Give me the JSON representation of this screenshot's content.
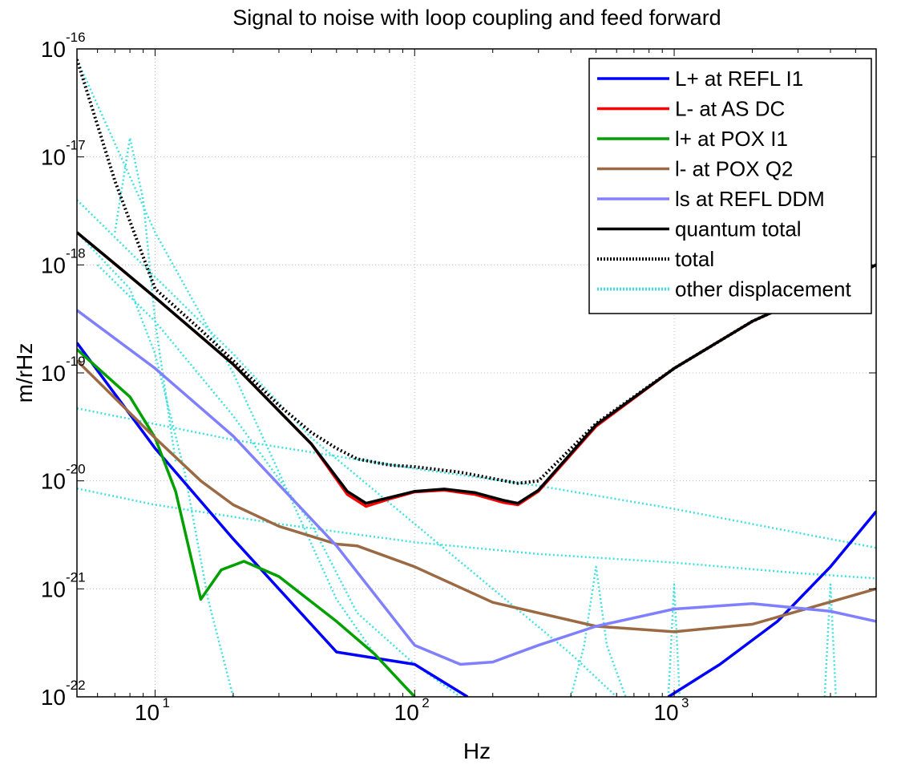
{
  "chart_data": {
    "type": "line",
    "title": "Signal to noise with loop coupling and feed forward",
    "xlabel": "Hz",
    "ylabel": "m/rHz",
    "xscale": "log",
    "yscale": "log",
    "xlim": [
      5,
      6000
    ],
    "ylim": [
      1e-22,
      1e-16
    ],
    "grid": true,
    "legend_position": "top-right",
    "x_ticks": [
      {
        "base": "10",
        "exp": "1",
        "value": 10
      },
      {
        "base": "10",
        "exp": "2",
        "value": 100
      },
      {
        "base": "10",
        "exp": "3",
        "value": 1000
      }
    ],
    "y_ticks": [
      {
        "base": "10",
        "exp": "-22",
        "value": 1e-22
      },
      {
        "base": "10",
        "exp": "-21",
        "value": 1e-21
      },
      {
        "base": "10",
        "exp": "-20",
        "value": 1e-20
      },
      {
        "base": "10",
        "exp": "-19",
        "value": 1e-19
      },
      {
        "base": "10",
        "exp": "-18",
        "value": 1e-18
      },
      {
        "base": "10",
        "exp": "-17",
        "value": 1e-17
      },
      {
        "base": "10",
        "exp": "-16",
        "value": 1e-16
      }
    ],
    "series": [
      {
        "name": "L+ at REFL I1",
        "color": "#0000ff",
        "style": "solid",
        "x": [
          5,
          10,
          20,
          50,
          100,
          160
        ],
        "y": [
          1.9e-19,
          2e-20,
          2.9e-21,
          2.6e-22,
          2e-22,
          1e-22
        ]
      },
      {
        "name": "L+ at REFL I1 (high frequency)",
        "color": "#0000ff",
        "style": "solid",
        "x": [
          950,
          1500,
          2500,
          4000,
          6000
        ],
        "y": [
          1e-22,
          2e-22,
          5e-22,
          1.6e-21,
          5.2e-21
        ]
      },
      {
        "name": "L- at AS DC",
        "color": "#ff0000",
        "style": "solid",
        "x": [
          5,
          10,
          20,
          40,
          55,
          65,
          80,
          100,
          130,
          170,
          220,
          250,
          300,
          500,
          1000,
          2000,
          6000
        ],
        "y": [
          2e-18,
          5e-19,
          1.2e-19,
          2.2e-20,
          7.5e-21,
          5.8e-21,
          6.8e-21,
          7.9e-21,
          8.2e-21,
          7.5e-21,
          6.3e-21,
          6e-21,
          8e-21,
          3.2e-20,
          1.1e-19,
          3e-19,
          1e-18
        ]
      },
      {
        "name": "l+ at POX I1",
        "color": "#00a000",
        "style": "solid",
        "x": [
          5,
          8,
          10,
          12,
          15,
          18,
          22,
          30,
          50,
          70,
          100
        ],
        "y": [
          1.65e-19,
          6e-20,
          2.5e-20,
          8e-21,
          8e-22,
          1.5e-21,
          1.8e-21,
          1.3e-21,
          5e-22,
          2.5e-22,
          1e-22
        ]
      },
      {
        "name": "l- at POX Q2",
        "color": "#9b6a44",
        "style": "solid",
        "x": [
          5,
          10,
          15,
          20,
          30,
          50,
          60,
          100,
          200,
          500,
          1000,
          2000,
          6000
        ],
        "y": [
          1.3e-19,
          2.5e-20,
          1e-20,
          6e-21,
          3.8e-21,
          2.6e-21,
          2.5e-21,
          1.6e-21,
          7.5e-22,
          4.5e-22,
          4e-22,
          4.7e-22,
          1e-21
        ]
      },
      {
        "name": "ls at REFL DDM",
        "color": "#8080ff",
        "style": "solid",
        "x": [
          5,
          10,
          20,
          50,
          100,
          150,
          200,
          300,
          500,
          1000,
          2000,
          4000,
          6000
        ],
        "y": [
          3.8e-19,
          1.1e-19,
          2.6e-20,
          2.5e-21,
          3e-22,
          2e-22,
          2.1e-22,
          3e-22,
          4.5e-22,
          6.5e-22,
          7.3e-22,
          6.2e-22,
          5e-22
        ]
      },
      {
        "name": "quantum total",
        "color": "#000000",
        "style": "solid",
        "x": [
          5,
          10,
          20,
          40,
          55,
          65,
          80,
          100,
          130,
          170,
          220,
          250,
          300,
          500,
          1000,
          2000,
          6000
        ],
        "y": [
          2e-18,
          5e-19,
          1.2e-19,
          2.2e-20,
          8e-21,
          6.2e-21,
          7e-21,
          8e-21,
          8.4e-21,
          7.8e-21,
          6.6e-21,
          6.2e-21,
          8.2e-21,
          3.3e-20,
          1.1e-19,
          3e-19,
          1e-18
        ]
      },
      {
        "name": "total",
        "color": "#000000",
        "style": "dotted",
        "x": [
          5,
          7,
          10,
          15,
          20,
          30,
          40,
          50,
          60,
          80,
          100,
          150,
          200,
          250,
          300,
          500,
          1000,
          2000,
          6000
        ],
        "y": [
          8e-17,
          6e-18,
          6e-19,
          2.5e-19,
          1.3e-19,
          5e-20,
          2.8e-20,
          2e-20,
          1.6e-20,
          1.4e-20,
          1.35e-20,
          1.2e-20,
          1.05e-20,
          9.5e-21,
          1e-20,
          3.4e-20,
          1.1e-19,
          3e-19,
          1e-18
        ]
      },
      {
        "name": "other displacement",
        "color": "#40e0e0",
        "style": "dotted",
        "x": [
          5,
          10,
          20,
          30,
          50,
          70,
          100
        ],
        "y": [
          8e-17,
          2e-18,
          1e-19,
          1.2e-20,
          8e-22,
          2.5e-22,
          1e-22
        ]
      },
      {
        "name": "other displacement 2",
        "color": "#40e0e0",
        "style": "dotted",
        "x": [
          5,
          20,
          40,
          100,
          200,
          400,
          600
        ],
        "y": [
          4e-18,
          1.5e-19,
          2.5e-20,
          4e-21,
          1e-21,
          2.5e-22,
          1e-22
        ]
      },
      {
        "name": "other displacement 3",
        "color": "#40e0e0",
        "style": "dotted",
        "x": [
          5,
          20,
          100,
          300,
          1000,
          3000,
          6000
        ],
        "y": [
          4.7e-20,
          2.4e-20,
          1.3e-20,
          9e-21,
          5.5e-21,
          3.3e-21,
          2.4e-21
        ]
      },
      {
        "name": "other displacement 4",
        "color": "#40e0e0",
        "style": "dotted",
        "x": [
          5,
          10,
          30,
          100,
          300,
          1000,
          3000,
          6000
        ],
        "y": [
          8.5e-21,
          6e-21,
          4e-21,
          2.7e-21,
          2.1e-21,
          1.75e-21,
          1.4e-21,
          1.25e-21
        ]
      },
      {
        "name": "other displacement 5",
        "color": "#40e0e0",
        "style": "dotted",
        "x": [
          5,
          8,
          10,
          13,
          16,
          20
        ],
        "y": [
          2e-18,
          6e-19,
          1.5e-19,
          1.2e-20,
          8e-22,
          1e-22
        ]
      },
      {
        "name": "other displacement 6",
        "color": "#40e0e0",
        "style": "dotted",
        "x": [
          6,
          10,
          20,
          40,
          60,
          100,
          150
        ],
        "y": [
          1e-18,
          3e-19,
          4e-20,
          4e-21,
          6e-22,
          2e-22,
          1e-22
        ]
      },
      {
        "name": "other displacement 7",
        "color": "#40e0e0",
        "style": "dotted",
        "x": [
          7,
          8,
          9,
          10,
          12
        ],
        "y": [
          2e-18,
          1.5e-17,
          4e-18,
          3e-19,
          1.5e-20
        ]
      },
      {
        "name": "other displacement 8",
        "color": "#40e0e0",
        "style": "dotted",
        "x": [
          400,
          450,
          500,
          550,
          650
        ],
        "y": [
          1e-22,
          3e-22,
          1.6e-21,
          3e-22,
          1e-22
        ]
      },
      {
        "name": "other displacement 9",
        "color": "#40e0e0",
        "style": "dotted",
        "x": [
          950,
          1000,
          1050
        ],
        "y": [
          1e-22,
          1.1e-21,
          1e-22
        ]
      },
      {
        "name": "other displacement 10",
        "color": "#40e0e0",
        "style": "dotted",
        "x": [
          3800,
          4000,
          4200
        ],
        "y": [
          1e-22,
          1.1e-21,
          1e-22
        ]
      }
    ],
    "legend": [
      {
        "label": "L+ at REFL I1",
        "color": "#0000ff",
        "style": "solid"
      },
      {
        "label": "L- at AS DC",
        "color": "#ff0000",
        "style": "solid"
      },
      {
        "label": "l+ at POX I1",
        "color": "#00a000",
        "style": "solid"
      },
      {
        "label": "l- at POX Q2",
        "color": "#9b6a44",
        "style": "solid"
      },
      {
        "label": "ls at REFL DDM",
        "color": "#8080ff",
        "style": "solid"
      },
      {
        "label": "quantum total",
        "color": "#000000",
        "style": "solid"
      },
      {
        "label": "total",
        "color": "#000000",
        "style": "dotted"
      },
      {
        "label": "other displacement",
        "color": "#40e0e0",
        "style": "dotted"
      }
    ]
  }
}
